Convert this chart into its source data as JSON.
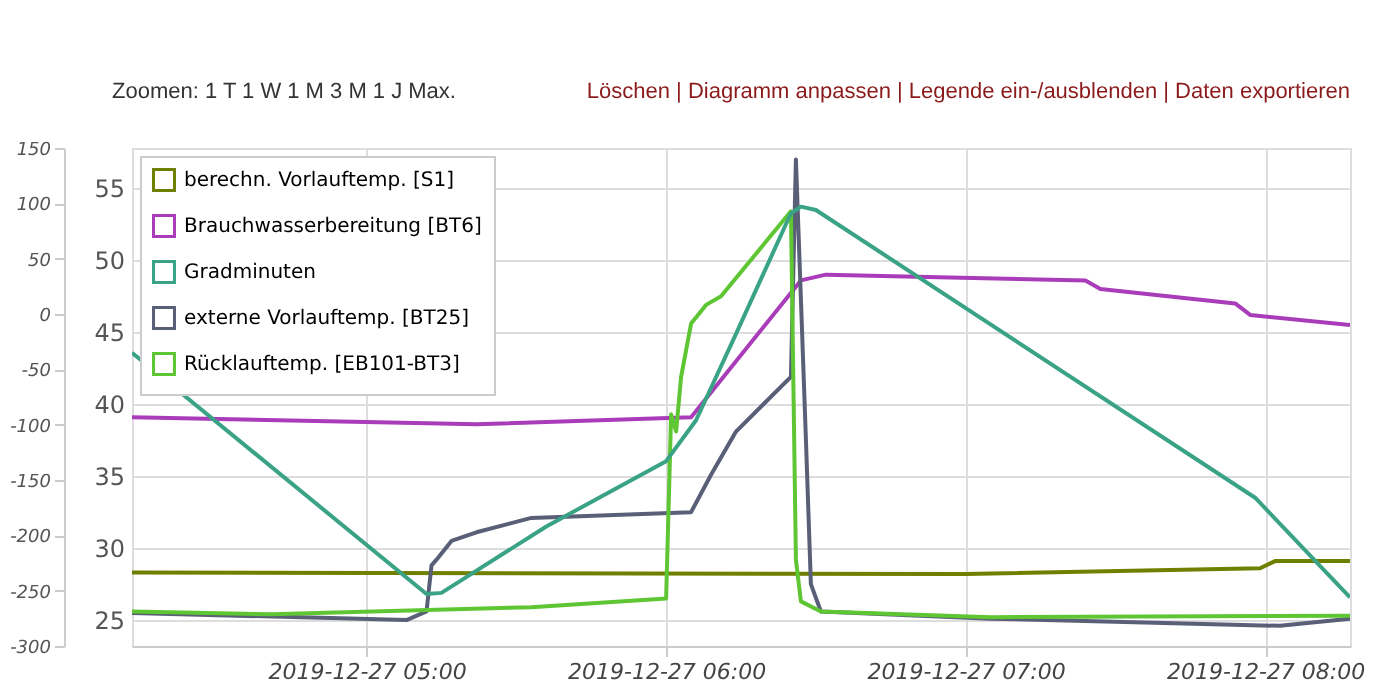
{
  "chart_data": {
    "type": "line",
    "annotations": [
      "Zoomen: 1 T 1 W 1 M 3 M 1 J Max.",
      "Löschen | Diagramm anpassen | Legende ein-/ausblenden | Daten exportieren"
    ],
    "xlim": [
      "2019-12-27T04:13",
      "2019-12-27T08:17"
    ],
    "xticks": [
      {
        "value": "2019-12-27T05:00",
        "label": "2019-12-27 05:00"
      },
      {
        "value": "2019-12-27T06:00",
        "label": "2019-12-27 06:00"
      },
      {
        "value": "2019-12-27T07:00",
        "label": "2019-12-27 07:00"
      },
      {
        "value": "2019-12-27T08:00",
        "label": "2019-12-27 08:00"
      }
    ],
    "ylim": [
      23.2,
      57.8
    ],
    "yticks": [
      25,
      30,
      35,
      40,
      45,
      50,
      55
    ],
    "y2lim": [
      -300,
      150
    ],
    "y2ticks": [
      -300,
      -250,
      -200,
      -150,
      -100,
      -50,
      0,
      50,
      100,
      150
    ],
    "grid": true,
    "legend": "top left",
    "series": [
      {
        "name": "berechn. Vorlauftemp. [S1]",
        "color": "#6f7f00",
        "x": [
          "2019-12-27T04:13",
          "2019-12-27T07:00",
          "2019-12-27T07:59",
          "2019-12-27T08:02",
          "2019-12-27T08:17"
        ],
        "values": [
          28.3,
          28.2,
          28.6,
          29.1,
          29.1
        ]
      },
      {
        "name": "Brauchwasserbereitung [BT6]",
        "color": "#a93db9",
        "x": [
          "2019-12-27T04:13",
          "2019-12-27T05:22",
          "2019-12-27T06:05",
          "2019-12-27T06:27",
          "2019-12-27T06:32",
          "2019-12-27T07:24",
          "2019-12-27T07:27",
          "2019-12-27T07:54",
          "2019-12-27T07:57",
          "2019-12-27T08:17"
        ],
        "values": [
          39.1,
          38.6,
          39.1,
          48.6,
          49.0,
          48.6,
          48.0,
          47.0,
          46.2,
          45.5
        ]
      },
      {
        "name": "Gradminuten",
        "color": "#3aa386",
        "axis": "y2",
        "x": [
          "2019-12-27T04:13",
          "2019-12-27T05:12",
          "2019-12-27T05:15",
          "2019-12-27T05:36",
          "2019-12-27T06:00",
          "2019-12-27T06:06",
          "2019-12-27T06:14",
          "2019-12-27T06:25",
          "2019-12-27T06:27",
          "2019-12-27T06:30",
          "2019-12-27T07:58",
          "2019-12-27T08:17"
        ],
        "values": [
          -35,
          -253,
          -252,
          -192,
          -133,
          -96,
          -18,
          91,
          97,
          94,
          -166,
          -256
        ]
      },
      {
        "name": "externe Vorlauftemp. [BT25]",
        "color": "#5a5f78",
        "x": [
          "2019-12-27T04:13",
          "2019-12-27T05:08",
          "2019-12-27T05:12",
          "2019-12-27T05:13",
          "2019-12-27T05:14",
          "2019-12-27T05:17",
          "2019-12-27T05:22",
          "2019-12-27T05:33",
          "2019-12-27T06:05",
          "2019-12-27T06:09",
          "2019-12-27T06:14",
          "2019-12-27T06:25",
          "2019-12-27T06:26",
          "2019-12-27T06:28",
          "2019-12-27T06:29",
          "2019-12-27T06:31",
          "2019-12-27T07:05",
          "2019-12-27T08:03",
          "2019-12-27T08:17"
        ],
        "values": [
          25.5,
          25.0,
          25.6,
          28.8,
          29.2,
          30.5,
          31.1,
          32.1,
          32.5,
          35.1,
          38.1,
          41.9,
          57.0,
          37.6,
          27.5,
          25.6,
          25.1,
          24.6,
          25.1
        ]
      },
      {
        "name": "Rücklauftemp. [EB101-BT3]",
        "color": "#5ec633",
        "x": [
          "2019-12-27T04:13",
          "2019-12-27T04:41",
          "2019-12-27T05:33",
          "2019-12-27T06:00",
          "2019-12-27T06:01",
          "2019-12-27T06:02",
          "2019-12-27T06:03",
          "2019-12-27T06:05",
          "2019-12-27T06:08",
          "2019-12-27T06:11",
          "2019-12-27T06:25",
          "2019-12-27T06:26",
          "2019-12-27T06:27",
          "2019-12-27T06:31",
          "2019-12-27T07:05",
          "2019-12-27T08:17"
        ],
        "values": [
          25.6,
          25.4,
          25.9,
          26.5,
          39.3,
          38.1,
          41.9,
          45.6,
          46.9,
          47.5,
          53.4,
          29.2,
          26.3,
          25.6,
          25.2,
          25.3
        ]
      }
    ]
  }
}
